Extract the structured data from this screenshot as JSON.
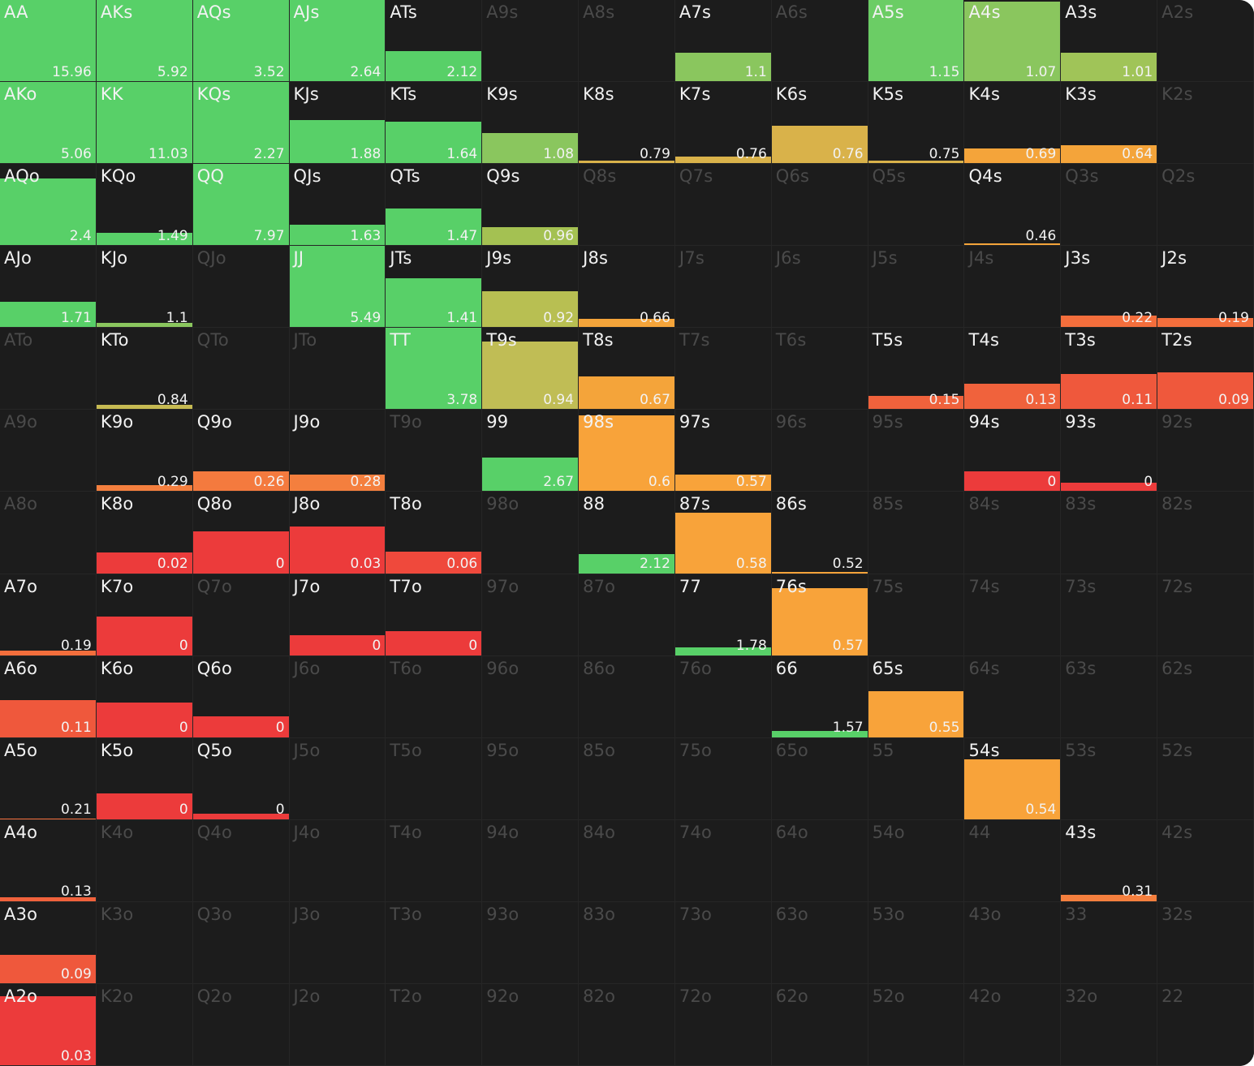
{
  "range_grid": {
    "rows": [
      [
        {
          "hand": "AA",
          "value": "15.96",
          "fill": 1.0,
          "color": "#58d068"
        },
        {
          "hand": "AKs",
          "value": "5.92",
          "fill": 1.0,
          "color": "#58d068"
        },
        {
          "hand": "AQs",
          "value": "3.52",
          "fill": 1.0,
          "color": "#58d068"
        },
        {
          "hand": "AJs",
          "value": "2.64",
          "fill": 1.0,
          "color": "#58d068"
        },
        {
          "hand": "ATs",
          "value": "2.12",
          "fill": 0.37,
          "color": "#58d068"
        },
        {
          "hand": "A9s"
        },
        {
          "hand": "A8s"
        },
        {
          "hand": "A7s",
          "value": "1.1",
          "fill": 0.35,
          "color": "#8ac65e"
        },
        {
          "hand": "A6s"
        },
        {
          "hand": "A5s",
          "value": "1.15",
          "fill": 1.0,
          "color": "#6bcd65"
        },
        {
          "hand": "A4s",
          "value": "1.07",
          "fill": 0.98,
          "color": "#8ac65e"
        },
        {
          "hand": "A3s",
          "value": "1.01",
          "fill": 0.35,
          "color": "#a0c458"
        },
        {
          "hand": "A2s"
        }
      ],
      [
        {
          "hand": "AKo",
          "value": "5.06",
          "fill": 1.0,
          "color": "#58d068"
        },
        {
          "hand": "KK",
          "value": "11.03",
          "fill": 1.0,
          "color": "#58d068"
        },
        {
          "hand": "KQs",
          "value": "2.27",
          "fill": 1.0,
          "color": "#58d068"
        },
        {
          "hand": "KJs",
          "value": "1.88",
          "fill": 0.53,
          "color": "#58d068"
        },
        {
          "hand": "KTs",
          "value": "1.64",
          "fill": 0.51,
          "color": "#58d068"
        },
        {
          "hand": "K9s",
          "value": "1.08",
          "fill": 0.37,
          "color": "#8ac65e"
        },
        {
          "hand": "K8s",
          "value": "0.79",
          "fill": 0.03,
          "color": "#d9b24a"
        },
        {
          "hand": "K7s",
          "value": "0.76",
          "fill": 0.08,
          "color": "#d9b24a"
        },
        {
          "hand": "K6s",
          "value": "0.76",
          "fill": 0.46,
          "color": "#d9b24a"
        },
        {
          "hand": "K5s",
          "value": "0.75",
          "fill": 0.03,
          "color": "#d9b24a"
        },
        {
          "hand": "K4s",
          "value": "0.69",
          "fill": 0.18,
          "color": "#f4a43a"
        },
        {
          "hand": "K3s",
          "value": "0.64",
          "fill": 0.22,
          "color": "#f4a43a"
        },
        {
          "hand": "K2s"
        }
      ],
      [
        {
          "hand": "AQo",
          "value": "2.4",
          "fill": 0.82,
          "color": "#58d068"
        },
        {
          "hand": "KQo",
          "value": "1.49",
          "fill": 0.15,
          "color": "#58d068"
        },
        {
          "hand": "QQ",
          "value": "7.97",
          "fill": 1.0,
          "color": "#58d068"
        },
        {
          "hand": "QJs",
          "value": "1.63",
          "fill": 0.25,
          "color": "#58d068"
        },
        {
          "hand": "QTs",
          "value": "1.47",
          "fill": 0.45,
          "color": "#58d068"
        },
        {
          "hand": "Q9s",
          "value": "0.96",
          "fill": 0.22,
          "color": "#a4c152"
        },
        {
          "hand": "Q8s"
        },
        {
          "hand": "Q7s"
        },
        {
          "hand": "Q6s"
        },
        {
          "hand": "Q5s"
        },
        {
          "hand": "Q4s",
          "value": "0.46",
          "fill": 0.02,
          "color": "#f4a43a"
        },
        {
          "hand": "Q3s"
        },
        {
          "hand": "Q2s"
        }
      ],
      [
        {
          "hand": "AJo",
          "value": "1.71",
          "fill": 0.31,
          "color": "#58d068"
        },
        {
          "hand": "KJo",
          "value": "1.1",
          "fill": 0.05,
          "color": "#8ac65e"
        },
        {
          "hand": "QJo"
        },
        {
          "hand": "JJ",
          "value": "5.49",
          "fill": 1.0,
          "color": "#58d068"
        },
        {
          "hand": "JTs",
          "value": "1.41",
          "fill": 0.6,
          "color": "#58d068"
        },
        {
          "hand": "J9s",
          "value": "0.92",
          "fill": 0.44,
          "color": "#b8bf52"
        },
        {
          "hand": "J8s",
          "value": "0.66",
          "fill": 0.1,
          "color": "#f4a43a"
        },
        {
          "hand": "J7s"
        },
        {
          "hand": "J6s"
        },
        {
          "hand": "J5s"
        },
        {
          "hand": "J4s"
        },
        {
          "hand": "J3s",
          "value": "0.22",
          "fill": 0.14,
          "color": "#f36e3c"
        },
        {
          "hand": "J2s",
          "value": "0.19",
          "fill": 0.11,
          "color": "#f36e3c"
        }
      ],
      [
        {
          "hand": "ATo"
        },
        {
          "hand": "KTo",
          "value": "0.84",
          "fill": 0.05,
          "color": "#c6ba52"
        },
        {
          "hand": "QTo"
        },
        {
          "hand": "JTo"
        },
        {
          "hand": "TT",
          "value": "3.78",
          "fill": 1.0,
          "color": "#58d068"
        },
        {
          "hand": "T9s",
          "value": "0.94",
          "fill": 0.83,
          "color": "#c0bd55"
        },
        {
          "hand": "T8s",
          "value": "0.67",
          "fill": 0.4,
          "color": "#f4a43a"
        },
        {
          "hand": "T7s"
        },
        {
          "hand": "T6s"
        },
        {
          "hand": "T5s",
          "value": "0.15",
          "fill": 0.16,
          "color": "#f0623c"
        },
        {
          "hand": "T4s",
          "value": "0.13",
          "fill": 0.31,
          "color": "#f0623c"
        },
        {
          "hand": "T3s",
          "value": "0.11",
          "fill": 0.43,
          "color": "#ef583c"
        },
        {
          "hand": "T2s",
          "value": "0.09",
          "fill": 0.45,
          "color": "#ef583c"
        }
      ],
      [
        {
          "hand": "A9o"
        },
        {
          "hand": "K9o",
          "value": "0.29",
          "fill": 0.07,
          "color": "#f47f3e"
        },
        {
          "hand": "Q9o",
          "value": "0.26",
          "fill": 0.24,
          "color": "#f47a3e"
        },
        {
          "hand": "J9o",
          "value": "0.28",
          "fill": 0.2,
          "color": "#f47f3e"
        },
        {
          "hand": "T9o"
        },
        {
          "hand": "99",
          "value": "2.67",
          "fill": 0.41,
          "color": "#58d068"
        },
        {
          "hand": "98s",
          "value": "0.6",
          "fill": 0.93,
          "color": "#f8a33a"
        },
        {
          "hand": "97s",
          "value": "0.57",
          "fill": 0.2,
          "color": "#f8a33a"
        },
        {
          "hand": "96s"
        },
        {
          "hand": "95s"
        },
        {
          "hand": "94s",
          "value": "0",
          "fill": 0.24,
          "color": "#ec3b3b"
        },
        {
          "hand": "93s",
          "value": "0",
          "fill": 0.1,
          "color": "#ec3b3b"
        },
        {
          "hand": "92s"
        }
      ],
      [
        {
          "hand": "A8o"
        },
        {
          "hand": "K8o",
          "value": "0.02",
          "fill": 0.26,
          "color": "#ec3b3b"
        },
        {
          "hand": "Q8o",
          "value": "0",
          "fill": 0.52,
          "color": "#ec3b3b"
        },
        {
          "hand": "J8o",
          "value": "0.03",
          "fill": 0.58,
          "color": "#ec3b3b"
        },
        {
          "hand": "T8o",
          "value": "0.06",
          "fill": 0.27,
          "color": "#ef493c"
        },
        {
          "hand": "98o"
        },
        {
          "hand": "88",
          "value": "2.12",
          "fill": 0.24,
          "color": "#58d068"
        },
        {
          "hand": "87s",
          "value": "0.58",
          "fill": 0.74,
          "color": "#f8a33a"
        },
        {
          "hand": "86s",
          "value": "0.52",
          "fill": 0.02,
          "color": "#f8a33a"
        },
        {
          "hand": "85s"
        },
        {
          "hand": "84s"
        },
        {
          "hand": "83s"
        },
        {
          "hand": "82s"
        }
      ],
      [
        {
          "hand": "A7o",
          "value": "0.19",
          "fill": 0.06,
          "color": "#f36e3c"
        },
        {
          "hand": "K7o",
          "value": "0",
          "fill": 0.48,
          "color": "#ec3b3b"
        },
        {
          "hand": "Q7o"
        },
        {
          "hand": "J7o",
          "value": "0",
          "fill": 0.25,
          "color": "#ec3b3b"
        },
        {
          "hand": "T7o",
          "value": "0",
          "fill": 0.3,
          "color": "#ec3b3b"
        },
        {
          "hand": "97o"
        },
        {
          "hand": "87o"
        },
        {
          "hand": "77",
          "value": "1.78",
          "fill": 0.1,
          "color": "#58d068"
        },
        {
          "hand": "76s",
          "value": "0.57",
          "fill": 0.83,
          "color": "#f8a33a"
        },
        {
          "hand": "75s"
        },
        {
          "hand": "74s"
        },
        {
          "hand": "73s"
        },
        {
          "hand": "72s"
        }
      ],
      [
        {
          "hand": "A6o",
          "value": "0.11",
          "fill": 0.46,
          "color": "#ef583c"
        },
        {
          "hand": "K6o",
          "value": "0",
          "fill": 0.43,
          "color": "#ec3b3b"
        },
        {
          "hand": "Q6o",
          "value": "0",
          "fill": 0.26,
          "color": "#ec3b3b"
        },
        {
          "hand": "J6o"
        },
        {
          "hand": "T6o"
        },
        {
          "hand": "96o"
        },
        {
          "hand": "86o"
        },
        {
          "hand": "76o"
        },
        {
          "hand": "66",
          "value": "1.57",
          "fill": 0.08,
          "color": "#58d068"
        },
        {
          "hand": "65s",
          "value": "0.55",
          "fill": 0.57,
          "color": "#f8a33a"
        },
        {
          "hand": "64s"
        },
        {
          "hand": "63s"
        },
        {
          "hand": "62s"
        }
      ],
      [
        {
          "hand": "A5o",
          "value": "0.21",
          "fill": 0.01,
          "color": "#f36e3c"
        },
        {
          "hand": "K5o",
          "value": "0",
          "fill": 0.32,
          "color": "#ec3b3b"
        },
        {
          "hand": "Q5o",
          "value": "0",
          "fill": 0.07,
          "color": "#ec3b3b"
        },
        {
          "hand": "J5o"
        },
        {
          "hand": "T5o"
        },
        {
          "hand": "95o"
        },
        {
          "hand": "85o"
        },
        {
          "hand": "75o"
        },
        {
          "hand": "65o"
        },
        {
          "hand": "55"
        },
        {
          "hand": "54s",
          "value": "0.54",
          "fill": 0.74,
          "color": "#f8a33a"
        },
        {
          "hand": "53s"
        },
        {
          "hand": "52s"
        }
      ],
      [
        {
          "hand": "A4o",
          "value": "0.13",
          "fill": 0.05,
          "color": "#f0623c"
        },
        {
          "hand": "K4o"
        },
        {
          "hand": "Q4o"
        },
        {
          "hand": "J4o"
        },
        {
          "hand": "T4o"
        },
        {
          "hand": "94o"
        },
        {
          "hand": "84o"
        },
        {
          "hand": "74o"
        },
        {
          "hand": "64o"
        },
        {
          "hand": "54o"
        },
        {
          "hand": "44"
        },
        {
          "hand": "43s",
          "value": "0.31",
          "fill": 0.08,
          "color": "#f47f3e"
        },
        {
          "hand": "42s"
        }
      ],
      [
        {
          "hand": "A3o",
          "value": "0.09",
          "fill": 0.35,
          "color": "#ef583c"
        },
        {
          "hand": "K3o"
        },
        {
          "hand": "Q3o"
        },
        {
          "hand": "J3o"
        },
        {
          "hand": "T3o"
        },
        {
          "hand": "93o"
        },
        {
          "hand": "83o"
        },
        {
          "hand": "73o"
        },
        {
          "hand": "63o"
        },
        {
          "hand": "53o"
        },
        {
          "hand": "43o"
        },
        {
          "hand": "33"
        },
        {
          "hand": "32s"
        }
      ],
      [
        {
          "hand": "A2o",
          "value": "0.03",
          "fill": 0.85,
          "color": "#ec3b3b"
        },
        {
          "hand": "K2o"
        },
        {
          "hand": "Q2o"
        },
        {
          "hand": "J2o"
        },
        {
          "hand": "T2o"
        },
        {
          "hand": "92o"
        },
        {
          "hand": "82o"
        },
        {
          "hand": "72o"
        },
        {
          "hand": "62o"
        },
        {
          "hand": "52o"
        },
        {
          "hand": "42o"
        },
        {
          "hand": "32o"
        },
        {
          "hand": "22"
        }
      ]
    ]
  }
}
